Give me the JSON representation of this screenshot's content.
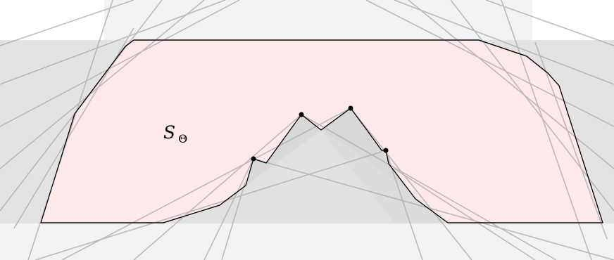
{
  "figure": {
    "region_label": {
      "main": "S",
      "subscript": "Θ"
    },
    "colors": {
      "background": "#ffffff",
      "band_light": "#f2f2f2",
      "band_mid": "#e3e3e3",
      "region_fill": "#fde9ea",
      "region_stroke": "#000000",
      "wedge_fill": "#d6d6d6",
      "ray_color": "#a9a9a9",
      "point_color": "#000000"
    }
  }
}
